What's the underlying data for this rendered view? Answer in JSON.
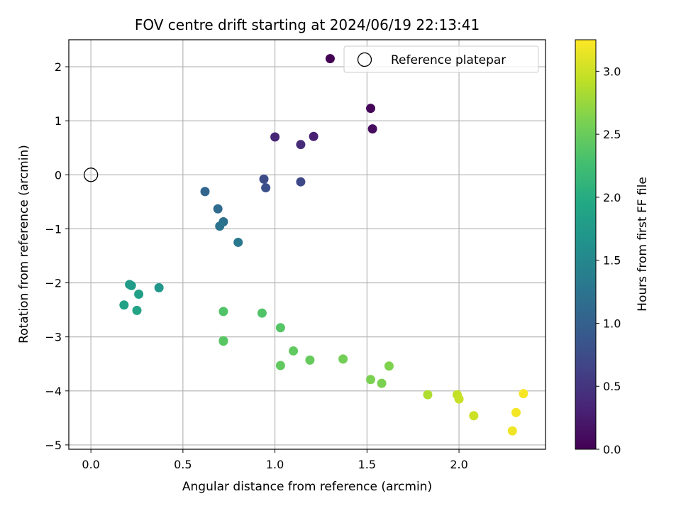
{
  "chart_data": {
    "type": "scatter",
    "title": "FOV centre drift starting at 2024/06/19 22:13:41",
    "xlabel": "Angular distance from reference (arcmin)",
    "ylabel": "Rotation from reference (arcmin)",
    "xlim": [
      -0.12,
      2.47
    ],
    "ylim": [
      -5.08,
      2.5
    ],
    "xticks": [
      0.0,
      0.5,
      1.0,
      1.5,
      2.0
    ],
    "xtick_labels": [
      "0.0",
      "0.5",
      "1.0",
      "1.5",
      "2.0"
    ],
    "yticks": [
      -5,
      -4,
      -3,
      -2,
      -1,
      0,
      1,
      2
    ],
    "ytick_labels": [
      "−5",
      "−4",
      "−3",
      "−2",
      "−1",
      "0",
      "1",
      "2"
    ],
    "grid": true,
    "legend_position": "top-right",
    "legend": [
      {
        "label": "Reference platepar",
        "marker": "open-circle"
      }
    ],
    "reference_point": {
      "x": 0.0,
      "y": 0.0
    },
    "colorbar": {
      "label": "Hours from first FF file",
      "colormap": "viridis",
      "range": [
        0.0,
        3.25
      ],
      "ticks": [
        0.0,
        0.5,
        1.0,
        1.5,
        2.0,
        2.5,
        3.0
      ],
      "tick_labels": [
        "0.0",
        "0.5",
        "1.0",
        "1.5",
        "2.0",
        "2.5",
        "3.0"
      ]
    },
    "points": [
      {
        "x": 1.3,
        "y": 2.15,
        "t": 0.0
      },
      {
        "x": 1.52,
        "y": 1.23,
        "t": 0.05
      },
      {
        "x": 1.53,
        "y": 0.85,
        "t": 0.1
      },
      {
        "x": 1.21,
        "y": 0.71,
        "t": 0.3
      },
      {
        "x": 1.0,
        "y": 0.7,
        "t": 0.35
      },
      {
        "x": 1.14,
        "y": 0.56,
        "t": 0.4
      },
      {
        "x": 1.14,
        "y": -0.13,
        "t": 0.7
      },
      {
        "x": 0.94,
        "y": -0.08,
        "t": 0.75
      },
      {
        "x": 0.95,
        "y": -0.24,
        "t": 0.8
      },
      {
        "x": 0.62,
        "y": -0.31,
        "t": 1.05
      },
      {
        "x": 0.69,
        "y": -0.63,
        "t": 1.15
      },
      {
        "x": 0.72,
        "y": -0.87,
        "t": 1.2
      },
      {
        "x": 0.7,
        "y": -0.95,
        "t": 1.25
      },
      {
        "x": 0.8,
        "y": -1.25,
        "t": 1.3
      },
      {
        "x": 0.37,
        "y": -2.09,
        "t": 1.7
      },
      {
        "x": 0.21,
        "y": -2.03,
        "t": 1.75
      },
      {
        "x": 0.22,
        "y": -2.05,
        "t": 1.78
      },
      {
        "x": 0.26,
        "y": -2.21,
        "t": 1.82
      },
      {
        "x": 0.18,
        "y": -2.41,
        "t": 1.85
      },
      {
        "x": 0.25,
        "y": -2.51,
        "t": 1.9
      },
      {
        "x": 0.72,
        "y": -2.53,
        "t": 2.35
      },
      {
        "x": 0.93,
        "y": -2.56,
        "t": 2.35
      },
      {
        "x": 1.03,
        "y": -2.83,
        "t": 2.38
      },
      {
        "x": 0.72,
        "y": -3.07,
        "t": 2.4
      },
      {
        "x": 0.72,
        "y": -3.08,
        "t": 2.4
      },
      {
        "x": 1.1,
        "y": -3.26,
        "t": 2.45
      },
      {
        "x": 1.03,
        "y": -3.53,
        "t": 2.45
      },
      {
        "x": 1.19,
        "y": -3.43,
        "t": 2.48
      },
      {
        "x": 1.37,
        "y": -3.41,
        "t": 2.55
      },
      {
        "x": 1.52,
        "y": -3.79,
        "t": 2.6
      },
      {
        "x": 1.58,
        "y": -3.86,
        "t": 2.6
      },
      {
        "x": 1.62,
        "y": -3.54,
        "t": 2.62
      },
      {
        "x": 1.83,
        "y": -4.07,
        "t": 2.85
      },
      {
        "x": 1.99,
        "y": -4.07,
        "t": 2.95
      },
      {
        "x": 2.0,
        "y": -4.15,
        "t": 2.98
      },
      {
        "x": 2.08,
        "y": -4.46,
        "t": 3.0
      },
      {
        "x": 2.29,
        "y": -4.74,
        "t": 3.18
      },
      {
        "x": 2.31,
        "y": -4.4,
        "t": 3.2
      },
      {
        "x": 2.35,
        "y": -4.05,
        "t": 3.22
      }
    ]
  }
}
